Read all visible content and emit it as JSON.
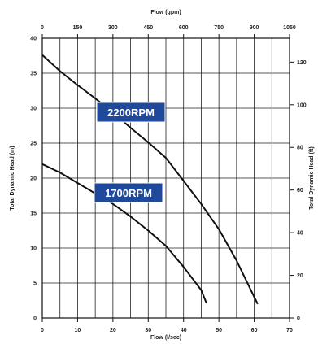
{
  "chart_data": {
    "type": "line",
    "title": "",
    "xlabel": "Flow (l/sec)",
    "x2label": "Flow (gpm)",
    "ylabel": "Total Dynamic Head (m)",
    "y2label": "Total Dynamic Head (ft)",
    "xlim": [
      0,
      70
    ],
    "ylim": [
      0,
      40
    ],
    "x2lim": [
      0,
      1050
    ],
    "y2lim": [
      0,
      131.2
    ],
    "x_ticks": [
      0,
      10,
      20,
      30,
      40,
      50,
      60,
      70
    ],
    "y_ticks": [
      0,
      5,
      10,
      15,
      20,
      25,
      30,
      35,
      40
    ],
    "x2_ticks": [
      0,
      150,
      300,
      450,
      600,
      750,
      900,
      1050
    ],
    "y2_ticks": [
      0,
      20,
      40,
      60,
      80,
      100,
      120
    ],
    "grid": true,
    "series": [
      {
        "name": "2200RPM",
        "x": [
          0,
          5,
          10,
          15,
          20,
          25,
          30,
          35,
          40,
          45,
          50,
          55,
          60,
          61
        ],
        "y": [
          37.6,
          35.3,
          33.3,
          31.4,
          29.4,
          27.2,
          25.1,
          22.9,
          19.6,
          16.3,
          12.7,
          8.2,
          3.0,
          2.0
        ]
      },
      {
        "name": "1700RPM",
        "x": [
          0,
          5,
          10,
          15,
          20,
          25,
          30,
          35,
          40,
          45,
          46.5
        ],
        "y": [
          22.0,
          20.8,
          19.3,
          17.8,
          16.3,
          14.5,
          12.5,
          10.3,
          7.3,
          4.0,
          2.1
        ]
      }
    ],
    "annotations": [
      {
        "text": "2200RPM",
        "series": "2200RPM"
      },
      {
        "text": "1700RPM",
        "series": "1700RPM"
      }
    ],
    "label_color": "#1f4a9c",
    "line_color": "#111111"
  }
}
